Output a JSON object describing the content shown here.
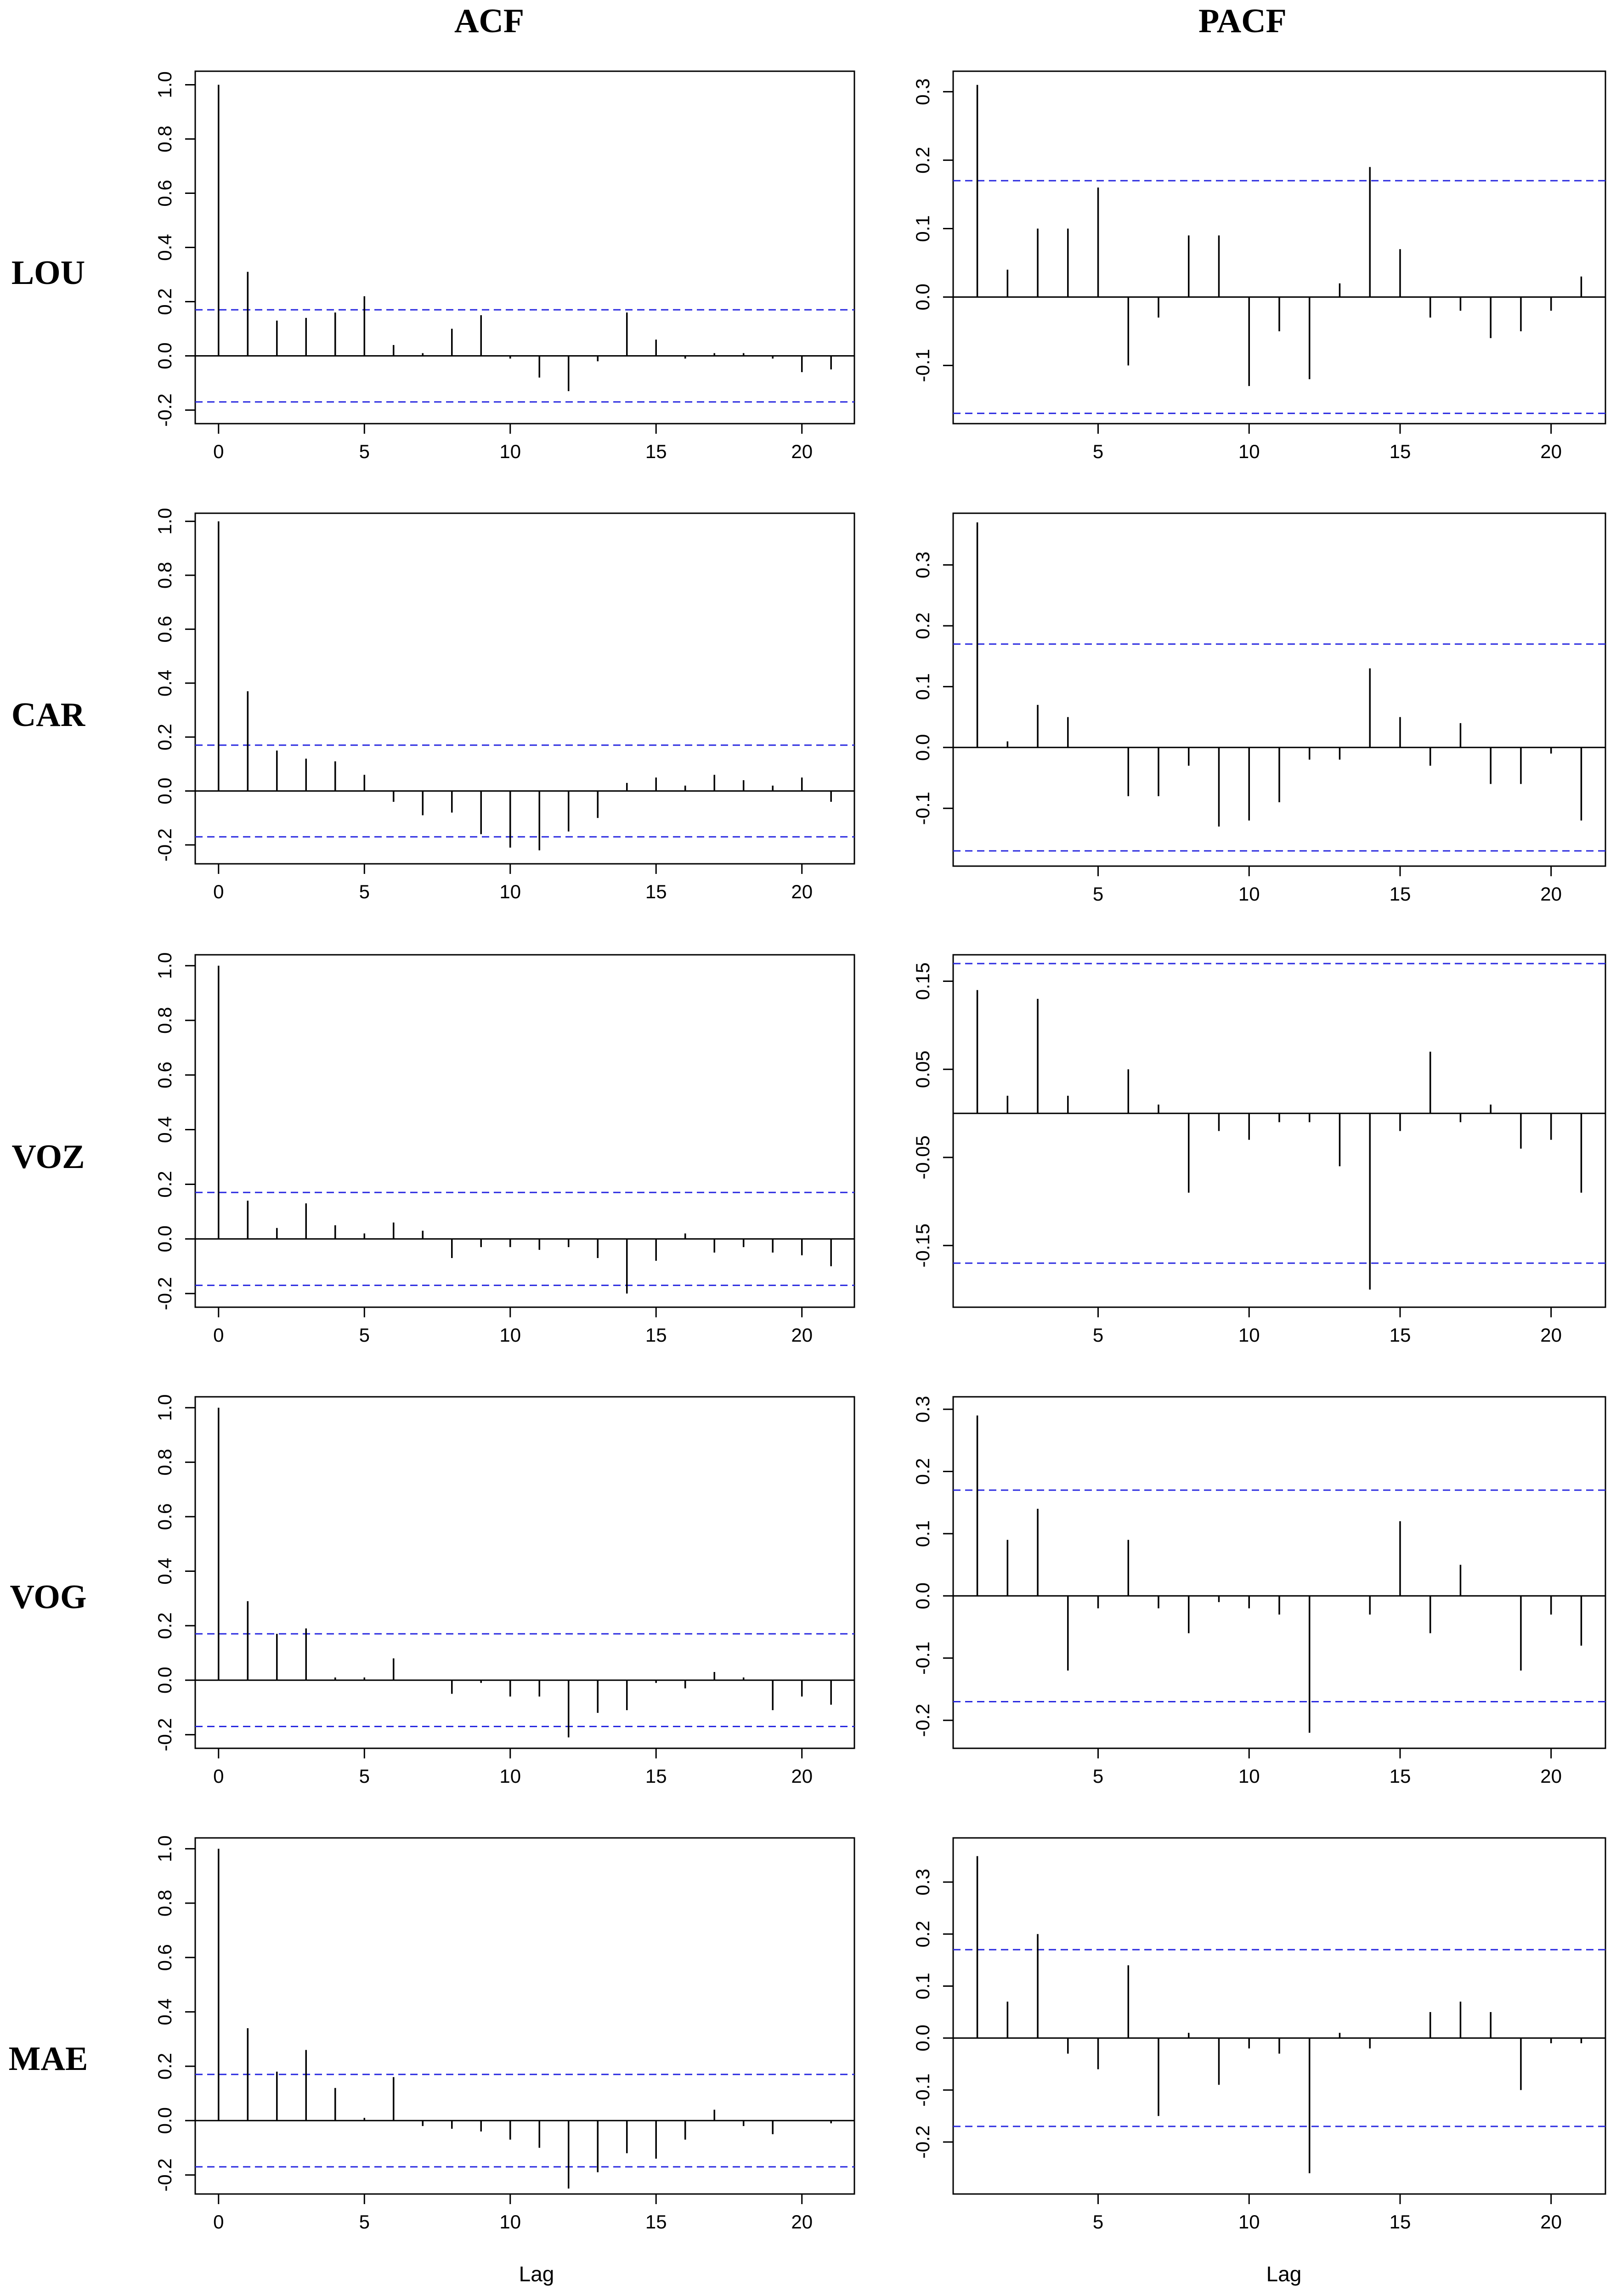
{
  "column_titles": [
    "ACF",
    "PACF"
  ],
  "row_labels": [
    "LOU",
    "CAR",
    "VOZ",
    "VOG",
    "MAE"
  ],
  "x_axis_title": "Lag",
  "colors": {
    "stem": "#000000",
    "confidence_band": "#2a2ae0",
    "frame": "#000000"
  },
  "chart_data": [
    {
      "type": "bar",
      "series_label": "LOU",
      "panel": "ACF",
      "x": [
        0,
        1,
        2,
        3,
        4,
        5,
        6,
        7,
        8,
        9,
        10,
        11,
        12,
        13,
        14,
        15,
        16,
        17,
        18,
        19,
        20,
        21
      ],
      "values": [
        1.0,
        0.31,
        0.13,
        0.14,
        0.16,
        0.22,
        0.04,
        0.01,
        0.1,
        0.15,
        -0.01,
        -0.08,
        -0.13,
        -0.02,
        0.16,
        0.06,
        -0.01,
        0.01,
        0.01,
        -0.01,
        -0.06,
        -0.05
      ],
      "confidence": 0.17,
      "xlim": [
        -0.8,
        21.8
      ],
      "ylim": [
        -0.25,
        1.05
      ],
      "xticks": [
        0,
        5,
        10,
        15,
        20
      ],
      "yticks": [
        -0.2,
        0.0,
        0.2,
        0.4,
        0.6,
        0.8,
        1.0
      ],
      "ytick_labels": [
        "-0.2",
        "0.0",
        "0.2",
        "0.4",
        "0.6",
        "0.8",
        "1.0"
      ]
    },
    {
      "type": "bar",
      "series_label": "LOU",
      "panel": "PACF",
      "x": [
        1,
        2,
        3,
        4,
        5,
        6,
        7,
        8,
        9,
        10,
        11,
        12,
        13,
        14,
        15,
        16,
        17,
        18,
        19,
        20,
        21
      ],
      "values": [
        0.31,
        0.04,
        0.1,
        0.1,
        0.16,
        -0.1,
        -0.03,
        0.09,
        0.09,
        -0.13,
        -0.05,
        -0.12,
        0.02,
        0.19,
        0.07,
        -0.03,
        -0.02,
        -0.06,
        -0.05,
        -0.02,
        0.03
      ],
      "confidence": 0.17,
      "xlim": [
        0.2,
        21.8
      ],
      "ylim": [
        -0.185,
        0.33
      ],
      "xticks": [
        5,
        10,
        15,
        20
      ],
      "yticks": [
        -0.1,
        0.0,
        0.1,
        0.2,
        0.3
      ],
      "ytick_labels": [
        "-0.1",
        "0.0",
        "0.1",
        "0.2",
        "0.3"
      ]
    },
    {
      "type": "bar",
      "series_label": "CAR",
      "panel": "ACF",
      "x": [
        0,
        1,
        2,
        3,
        4,
        5,
        6,
        7,
        8,
        9,
        10,
        11,
        12,
        13,
        14,
        15,
        16,
        17,
        18,
        19,
        20,
        21
      ],
      "values": [
        1.0,
        0.37,
        0.15,
        0.12,
        0.11,
        0.06,
        -0.04,
        -0.09,
        -0.08,
        -0.16,
        -0.21,
        -0.22,
        -0.15,
        -0.1,
        0.03,
        0.05,
        0.02,
        0.06,
        0.04,
        0.02,
        0.05,
        -0.04
      ],
      "confidence": 0.17,
      "xlim": [
        -0.8,
        21.8
      ],
      "ylim": [
        -0.27,
        1.03
      ],
      "xticks": [
        0,
        5,
        10,
        15,
        20
      ],
      "yticks": [
        -0.2,
        0.0,
        0.2,
        0.4,
        0.6,
        0.8,
        1.0
      ],
      "ytick_labels": [
        "-0.2",
        "0.0",
        "0.2",
        "0.4",
        "0.6",
        "0.8",
        "1.0"
      ]
    },
    {
      "type": "bar",
      "series_label": "CAR",
      "panel": "PACF",
      "x": [
        1,
        2,
        3,
        4,
        5,
        6,
        7,
        8,
        9,
        10,
        11,
        12,
        13,
        14,
        15,
        16,
        17,
        18,
        19,
        20,
        21
      ],
      "values": [
        0.37,
        0.01,
        0.07,
        0.05,
        0.0,
        -0.08,
        -0.08,
        -0.03,
        -0.13,
        -0.12,
        -0.09,
        -0.02,
        -0.02,
        0.13,
        0.05,
        -0.03,
        0.04,
        -0.06,
        -0.06,
        -0.01,
        -0.12
      ],
      "confidence": 0.17,
      "xlim": [
        0.2,
        21.8
      ],
      "ylim": [
        -0.195,
        0.385
      ],
      "xticks": [
        5,
        10,
        15,
        20
      ],
      "yticks": [
        -0.1,
        0.0,
        0.1,
        0.2,
        0.3
      ],
      "ytick_labels": [
        "-0.1",
        "0.0",
        "0.1",
        "0.2",
        "0.3"
      ]
    },
    {
      "type": "bar",
      "series_label": "VOZ",
      "panel": "ACF",
      "x": [
        0,
        1,
        2,
        3,
        4,
        5,
        6,
        7,
        8,
        9,
        10,
        11,
        12,
        13,
        14,
        15,
        16,
        17,
        18,
        19,
        20,
        21
      ],
      "values": [
        1.0,
        0.14,
        0.04,
        0.13,
        0.05,
        0.02,
        0.06,
        0.03,
        -0.07,
        -0.03,
        -0.03,
        -0.04,
        -0.03,
        -0.07,
        -0.2,
        -0.08,
        0.02,
        -0.05,
        -0.03,
        -0.05,
        -0.06,
        -0.1
      ],
      "confidence": 0.17,
      "xlim": [
        -0.8,
        21.8
      ],
      "ylim": [
        -0.25,
        1.04
      ],
      "xticks": [
        0,
        5,
        10,
        15,
        20
      ],
      "yticks": [
        -0.2,
        0.0,
        0.2,
        0.4,
        0.6,
        0.8,
        1.0
      ],
      "ytick_labels": [
        "-0.2",
        "0.0",
        "0.2",
        "0.4",
        "0.6",
        "0.8",
        "1.0"
      ]
    },
    {
      "type": "bar",
      "series_label": "VOZ",
      "panel": "PACF",
      "x": [
        1,
        2,
        3,
        4,
        5,
        6,
        7,
        8,
        9,
        10,
        11,
        12,
        13,
        14,
        15,
        16,
        17,
        18,
        19,
        20,
        21
      ],
      "values": [
        0.14,
        0.02,
        0.13,
        0.02,
        0.0,
        0.05,
        0.01,
        -0.09,
        -0.02,
        -0.03,
        -0.01,
        -0.01,
        -0.06,
        -0.2,
        -0.02,
        0.07,
        -0.01,
        0.01,
        -0.04,
        -0.03,
        -0.09
      ],
      "confidence": 0.17,
      "xlim": [
        0.2,
        21.8
      ],
      "ylim": [
        -0.22,
        0.18
      ],
      "xticks": [
        5,
        10,
        15,
        20
      ],
      "yticks": [
        -0.15,
        -0.05,
        0.05,
        0.15
      ],
      "ytick_labels": [
        "-0.15",
        "-0.05",
        "0.05",
        "0.15"
      ]
    },
    {
      "type": "bar",
      "series_label": "VOG",
      "panel": "ACF",
      "x": [
        0,
        1,
        2,
        3,
        4,
        5,
        6,
        7,
        8,
        9,
        10,
        11,
        12,
        13,
        14,
        15,
        16,
        17,
        18,
        19,
        20,
        21
      ],
      "values": [
        1.0,
        0.29,
        0.17,
        0.19,
        0.01,
        0.01,
        0.08,
        0.0,
        -0.05,
        -0.01,
        -0.06,
        -0.06,
        -0.21,
        -0.12,
        -0.11,
        -0.01,
        -0.03,
        0.03,
        0.01,
        -0.11,
        -0.06,
        -0.09
      ],
      "confidence": 0.17,
      "xlim": [
        -0.8,
        21.8
      ],
      "ylim": [
        -0.25,
        1.04
      ],
      "xticks": [
        0,
        5,
        10,
        15,
        20
      ],
      "yticks": [
        -0.2,
        0.0,
        0.2,
        0.4,
        0.6,
        0.8,
        1.0
      ],
      "ytick_labels": [
        "-0.2",
        "0.0",
        "0.2",
        "0.4",
        "0.6",
        "0.8",
        "1.0"
      ]
    },
    {
      "type": "bar",
      "series_label": "VOG",
      "panel": "PACF",
      "x": [
        1,
        2,
        3,
        4,
        5,
        6,
        7,
        8,
        9,
        10,
        11,
        12,
        13,
        14,
        15,
        16,
        17,
        18,
        19,
        20,
        21
      ],
      "values": [
        0.29,
        0.09,
        0.14,
        -0.12,
        -0.02,
        0.09,
        -0.02,
        -0.06,
        -0.01,
        -0.02,
        -0.03,
        -0.22,
        0.0,
        -0.03,
        0.12,
        -0.06,
        0.05,
        0.0,
        -0.12,
        -0.03,
        -0.08
      ],
      "confidence": 0.17,
      "xlim": [
        0.2,
        21.8
      ],
      "ylim": [
        -0.245,
        0.32
      ],
      "xticks": [
        5,
        10,
        15,
        20
      ],
      "yticks": [
        -0.2,
        -0.1,
        0.0,
        0.1,
        0.2,
        0.3
      ],
      "ytick_labels": [
        "-0.2",
        "-0.1",
        "0.0",
        "0.1",
        "0.2",
        "0.3"
      ]
    },
    {
      "type": "bar",
      "series_label": "MAE",
      "panel": "ACF",
      "x": [
        0,
        1,
        2,
        3,
        4,
        5,
        6,
        7,
        8,
        9,
        10,
        11,
        12,
        13,
        14,
        15,
        16,
        17,
        18,
        19,
        20,
        21
      ],
      "values": [
        1.0,
        0.34,
        0.18,
        0.26,
        0.12,
        0.01,
        0.16,
        -0.02,
        -0.03,
        -0.04,
        -0.07,
        -0.1,
        -0.25,
        -0.19,
        -0.12,
        -0.14,
        -0.07,
        0.04,
        -0.02,
        -0.05,
        0.0,
        -0.01
      ],
      "confidence": 0.17,
      "xlim": [
        -0.8,
        21.8
      ],
      "ylim": [
        -0.27,
        1.04
      ],
      "xticks": [
        0,
        5,
        10,
        15,
        20
      ],
      "yticks": [
        -0.2,
        0.0,
        0.2,
        0.4,
        0.6,
        0.8,
        1.0
      ],
      "ytick_labels": [
        "-0.2",
        "0.0",
        "0.2",
        "0.4",
        "0.6",
        "0.8",
        "1.0"
      ]
    },
    {
      "type": "bar",
      "series_label": "MAE",
      "panel": "PACF",
      "x": [
        1,
        2,
        3,
        4,
        5,
        6,
        7,
        8,
        9,
        10,
        11,
        12,
        13,
        14,
        15,
        16,
        17,
        18,
        19,
        20,
        21
      ],
      "values": [
        0.35,
        0.07,
        0.2,
        -0.03,
        -0.06,
        0.14,
        -0.15,
        0.01,
        -0.09,
        -0.02,
        -0.03,
        -0.26,
        0.01,
        -0.02,
        0.0,
        0.05,
        0.07,
        0.05,
        -0.1,
        -0.01,
        -0.01
      ],
      "confidence": 0.17,
      "xlim": [
        0.2,
        21.8
      ],
      "ylim": [
        -0.3,
        0.385
      ],
      "xticks": [
        5,
        10,
        15,
        20
      ],
      "yticks": [
        -0.2,
        -0.1,
        0.0,
        0.1,
        0.2,
        0.3
      ],
      "ytick_labels": [
        "-0.2",
        "-0.1",
        "0.0",
        "0.1",
        "0.2",
        "0.3"
      ]
    }
  ]
}
